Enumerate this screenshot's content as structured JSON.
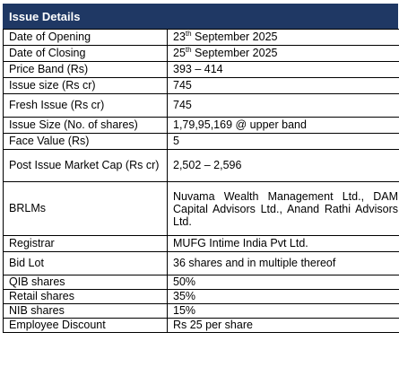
{
  "table": {
    "title": "Issue Details",
    "rows": [
      {
        "label": "Date of Opening",
        "value_main": "23",
        "value_sup": "th",
        "value_rest": " September 2025"
      },
      {
        "label": "Date of Closing",
        "value_main": "25",
        "value_sup": "th",
        "value_rest": " September 2025"
      },
      {
        "label": "Price Band (Rs)",
        "value": "393 – 414"
      },
      {
        "label": "Issue size (Rs cr)",
        "value": "745"
      },
      {
        "label": "Fresh Issue (Rs cr)",
        "value": "745"
      },
      {
        "label": "Issue Size (No. of shares)",
        "value": "1,79,95,169 @ upper band"
      },
      {
        "label": "Face Value (Rs)",
        "value": "5"
      },
      {
        "label": "Post Issue Market Cap (Rs cr)",
        "value": "2,502 – 2,596"
      },
      {
        "label": "BRLMs",
        "value": "Nuvama Wealth Management Ltd., DAM Capital Advisors Ltd., Anand Rathi Advisors Ltd."
      },
      {
        "label": "Registrar",
        "value": "MUFG Intime India Pvt Ltd."
      },
      {
        "label": "Bid Lot",
        "value": "36 shares and in multiple thereof"
      },
      {
        "label": "QIB shares",
        "value": "50%"
      },
      {
        "label": "Retail shares",
        "value": "35%"
      },
      {
        "label": "NIB shares",
        "value": "15%"
      },
      {
        "label": "Employee Discount",
        "value": "Rs 25 per share"
      }
    ]
  }
}
